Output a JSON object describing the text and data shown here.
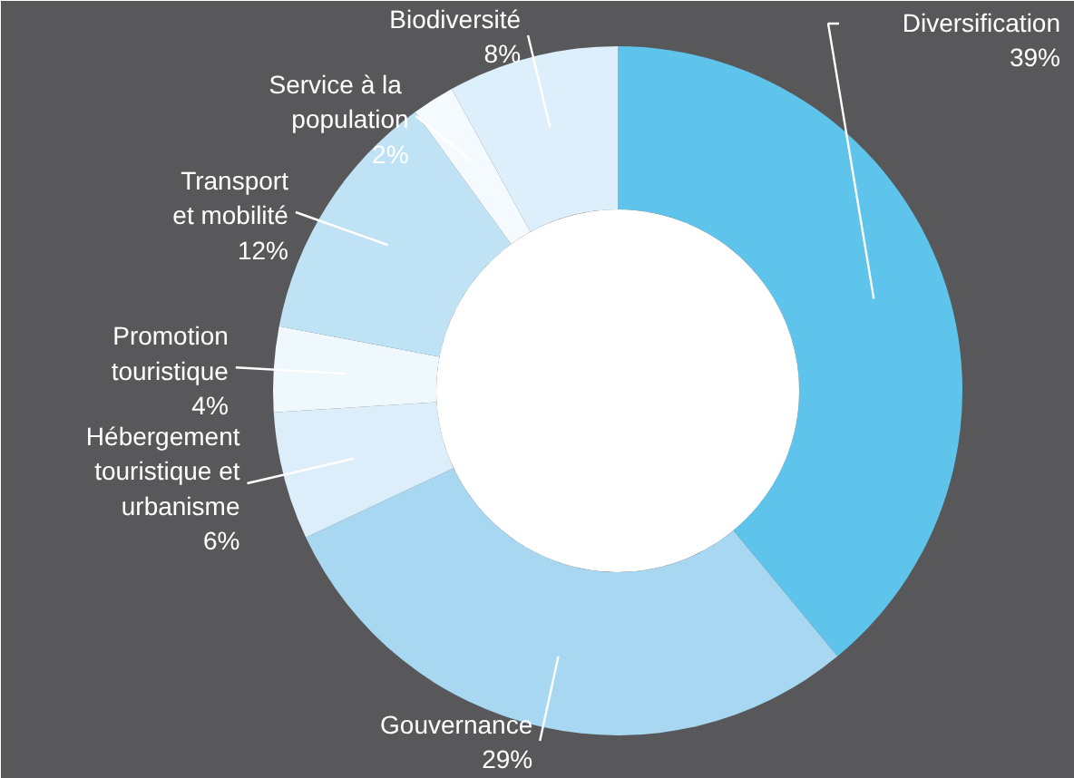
{
  "chart_data": {
    "type": "donut",
    "categories": [
      "Diversification",
      "Gouvernance",
      "Hébergement\ntouristique et\nurbanisme",
      "Promotion\ntouristique",
      "Transport\net mobilité",
      "Service  à la\npopulation",
      "Biodiversité"
    ],
    "values": [
      39,
      29,
      6,
      4,
      12,
      2,
      8
    ],
    "value_labels": [
      "39%",
      "29%",
      "6%",
      "4%",
      "12%",
      "2%",
      "8%"
    ],
    "colors": [
      "#5ec4ec",
      "#a8d8f1",
      "#dbeef9",
      "#eef8fd",
      "#bfe2f5",
      "#f4fafd",
      "#ddeffa"
    ]
  }
}
